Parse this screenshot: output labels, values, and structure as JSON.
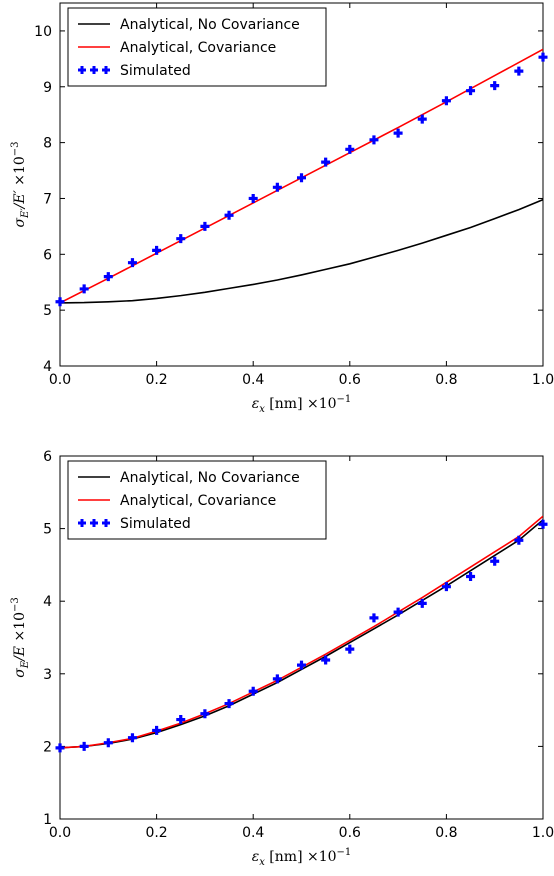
{
  "chart_data": [
    {
      "type": "line",
      "xlabel": "ε_x [nm] ×10⁻¹",
      "ylabel": "σ_E'/E' ×10⁻³",
      "xlim": [
        0,
        1.0
      ],
      "ylim": [
        4,
        10.5
      ],
      "xticks": [
        0.0,
        0.2,
        0.4,
        0.6,
        0.8,
        1.0
      ],
      "xtick_labels": [
        "0.0",
        "0.2",
        "0.4",
        "0.6",
        "0.8",
        "1.0"
      ],
      "yticks": [
        4,
        5,
        6,
        7,
        8,
        9,
        10
      ],
      "ytick_labels": [
        "4",
        "5",
        "6",
        "7",
        "8",
        "9",
        "10"
      ],
      "grid": false,
      "legend_position": "top-left",
      "series": [
        {
          "name": "Analytical, No Covariance",
          "kind": "line",
          "color": "#000000",
          "x": [
            0.0,
            0.05,
            0.1,
            0.15,
            0.2,
            0.25,
            0.3,
            0.35,
            0.4,
            0.45,
            0.5,
            0.55,
            0.6,
            0.65,
            0.7,
            0.75,
            0.8,
            0.85,
            0.9,
            0.95,
            1.0
          ],
          "y": [
            5.13,
            5.135,
            5.15,
            5.17,
            5.21,
            5.26,
            5.32,
            5.39,
            5.46,
            5.54,
            5.63,
            5.73,
            5.83,
            5.95,
            6.07,
            6.2,
            6.34,
            6.48,
            6.64,
            6.8,
            6.98
          ]
        },
        {
          "name": "Analytical, Covariance",
          "kind": "line",
          "color": "#ff0000",
          "x": [
            0.0,
            0.1,
            0.2,
            0.3,
            0.4,
            0.5,
            0.6,
            0.7,
            0.8,
            0.9,
            1.0
          ],
          "y": [
            5.13,
            5.57,
            6.02,
            6.47,
            6.92,
            7.37,
            7.82,
            8.27,
            8.73,
            9.2,
            9.67
          ]
        },
        {
          "name": "Simulated",
          "kind": "scatter",
          "marker": "plus",
          "color": "#0000ff",
          "x": [
            0.0,
            0.05,
            0.1,
            0.15,
            0.2,
            0.25,
            0.3,
            0.35,
            0.4,
            0.45,
            0.5,
            0.55,
            0.6,
            0.65,
            0.7,
            0.75,
            0.8,
            0.85,
            0.9,
            0.95,
            1.0
          ],
          "y": [
            5.15,
            5.38,
            5.6,
            5.85,
            6.07,
            6.28,
            6.5,
            6.7,
            7.0,
            7.2,
            7.37,
            7.65,
            7.88,
            8.05,
            8.17,
            8.42,
            8.75,
            8.93,
            9.02,
            9.28,
            9.53
          ]
        }
      ]
    },
    {
      "type": "line",
      "xlabel": "ε_x [nm] ×10⁻¹",
      "ylabel": "σ_E/E ×10⁻³",
      "xlim": [
        0,
        1.0
      ],
      "ylim": [
        1,
        6
      ],
      "xticks": [
        0.0,
        0.2,
        0.4,
        0.6,
        0.8,
        1.0
      ],
      "xtick_labels": [
        "0.0",
        "0.2",
        "0.4",
        "0.6",
        "0.8",
        "1.0"
      ],
      "yticks": [
        1,
        2,
        3,
        4,
        5,
        6
      ],
      "ytick_labels": [
        "1",
        "2",
        "3",
        "4",
        "5",
        "6"
      ],
      "grid": false,
      "legend_position": "top-left",
      "series": [
        {
          "name": "Analytical, No Covariance",
          "kind": "line",
          "color": "#000000",
          "x": [
            0.0,
            0.05,
            0.1,
            0.15,
            0.2,
            0.25,
            0.3,
            0.35,
            0.4,
            0.45,
            0.5,
            0.55,
            0.6,
            0.65,
            0.7,
            0.75,
            0.8,
            0.85,
            0.9,
            0.95,
            1.0
          ],
          "y": [
            1.98,
            2.0,
            2.04,
            2.1,
            2.19,
            2.3,
            2.42,
            2.56,
            2.72,
            2.88,
            3.06,
            3.24,
            3.43,
            3.62,
            3.81,
            4.01,
            4.21,
            4.42,
            4.63,
            4.84,
            5.12
          ]
        },
        {
          "name": "Analytical, Covariance",
          "kind": "line",
          "color": "#ff0000",
          "x": [
            0.0,
            0.05,
            0.1,
            0.15,
            0.2,
            0.25,
            0.3,
            0.35,
            0.4,
            0.45,
            0.5,
            0.55,
            0.6,
            0.65,
            0.7,
            0.75,
            0.8,
            0.85,
            0.9,
            0.95,
            1.0
          ],
          "y": [
            1.98,
            2.0,
            2.05,
            2.11,
            2.21,
            2.32,
            2.45,
            2.59,
            2.75,
            2.91,
            3.09,
            3.27,
            3.46,
            3.65,
            3.85,
            4.05,
            4.26,
            4.47,
            4.68,
            4.89,
            5.17
          ]
        },
        {
          "name": "Simulated",
          "kind": "scatter",
          "marker": "plus",
          "color": "#0000ff",
          "x": [
            0.0,
            0.05,
            0.1,
            0.15,
            0.2,
            0.25,
            0.3,
            0.35,
            0.4,
            0.45,
            0.5,
            0.55,
            0.6,
            0.65,
            0.7,
            0.75,
            0.8,
            0.85,
            0.9,
            0.95,
            1.0
          ],
          "y": [
            1.98,
            2.0,
            2.05,
            2.12,
            2.22,
            2.37,
            2.45,
            2.59,
            2.76,
            2.93,
            3.12,
            3.19,
            3.34,
            3.77,
            3.85,
            3.97,
            4.2,
            4.34,
            4.55,
            4.84,
            5.06
          ]
        }
      ]
    }
  ]
}
